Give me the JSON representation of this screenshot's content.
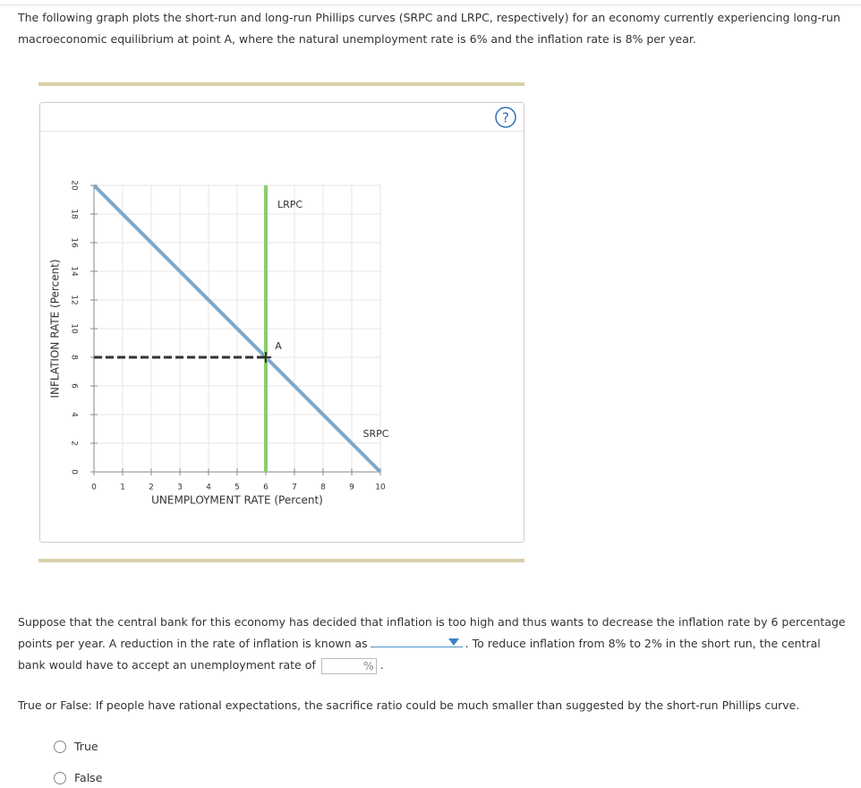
{
  "intro": "The following graph plots the short-run and long-run Phillips curves (SRPC and LRPC, respectively) for an economy currently experiencing long-run macroeconomic equilibrium at point A, where the natural unemployment rate is 6% and the inflation rate is 8% per year.",
  "help": "?",
  "chart_data": {
    "type": "line",
    "x_label": "UNEMPLOYMENT RATE (Percent)",
    "y_label": "INFLATION RATE (Percent)",
    "xlim": [
      0,
      10
    ],
    "ylim": [
      0,
      20
    ],
    "xticks": [
      0,
      1,
      2,
      3,
      4,
      5,
      6,
      7,
      8,
      9,
      10
    ],
    "yticks": [
      0,
      2,
      4,
      6,
      8,
      10,
      12,
      14,
      16,
      18,
      20
    ],
    "grid": true,
    "series": [
      {
        "name": "SRPC",
        "color": "#7ea8c9",
        "x": [
          0,
          10
        ],
        "values": [
          20,
          0
        ]
      },
      {
        "name": "LRPC",
        "color": "#86cf6e",
        "x": [
          6,
          6
        ],
        "values": [
          0,
          20
        ]
      }
    ],
    "point": {
      "label": "A",
      "x": 6,
      "y": 8,
      "color": "#333333"
    }
  },
  "question": {
    "before": "Suppose that the central bank for this economy has decided that inflation is too high and thus wants to decrease the inflation rate by 6 percentage points per year. A reduction in the rate of inflation is known as",
    "middle": ". To reduce inflation from 8% to 2% in the short run, the central bank would have to accept an unemployment rate of",
    "unit": "%",
    "end": "."
  },
  "true_false": {
    "prompt": "True or False: If people have rational expectations, the sacrifice ratio could be much smaller than suggested by the short-run Phillips curve.",
    "options": [
      "True",
      "False"
    ]
  }
}
